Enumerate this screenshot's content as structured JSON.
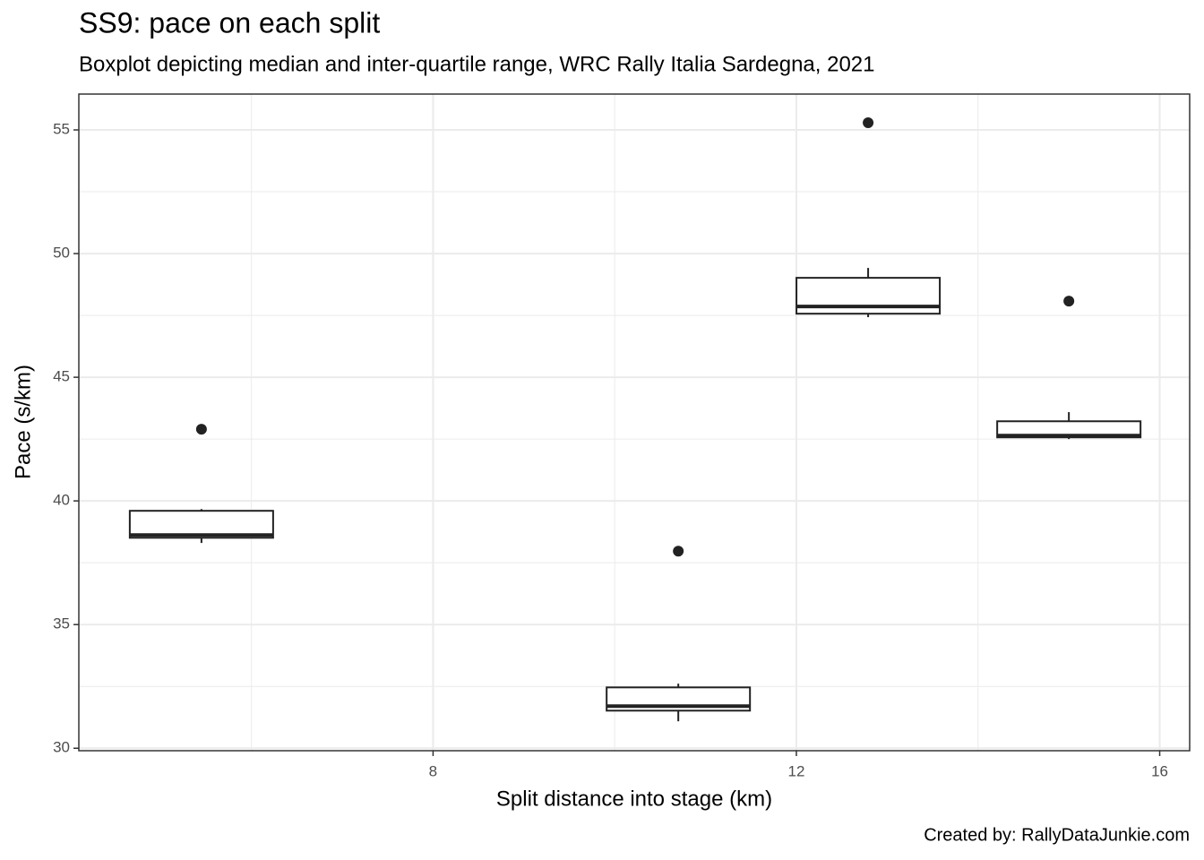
{
  "chart_data": {
    "type": "boxplot",
    "title": "SS9: pace on each split",
    "subtitle": "Boxplot depicting median and inter-quartile range, WRC Rally Italia Sardegna, 2021",
    "x_label": "Split distance into stage (km)",
    "y_label": "Pace (s/km)",
    "caption": "Created by: RallyDataJunkie.com",
    "color": "#222222",
    "grid": true,
    "xlim": [
      4.1,
      16.33
    ],
    "xticks": [
      8,
      12,
      16
    ],
    "x_minor_ticks": [
      6,
      10,
      14
    ],
    "ylim": [
      29.9,
      56.45
    ],
    "yticks": [
      30,
      35,
      40,
      45,
      50,
      55
    ],
    "y_minor_ticks": [
      32.5,
      37.5,
      42.5,
      47.5,
      52.5
    ],
    "boxes": [
      {
        "x": 5.45,
        "whisker_low": 38.3,
        "q1": 38.51,
        "median": 38.62,
        "q3": 39.6,
        "whisker_high": 39.67,
        "outliers": [
          42.9
        ]
      },
      {
        "x": 10.7,
        "whisker_low": 31.09,
        "q1": 31.52,
        "median": 31.7,
        "q3": 32.46,
        "whisker_high": 32.61,
        "outliers": [
          37.97
        ]
      },
      {
        "x": 12.79,
        "whisker_low": 47.43,
        "q1": 47.57,
        "median": 47.86,
        "q3": 49.02,
        "whisker_high": 49.42,
        "outliers": [
          55.29
        ]
      },
      {
        "x": 15.0,
        "whisker_low": 42.5,
        "q1": 42.57,
        "median": 42.64,
        "q3": 43.22,
        "whisker_high": 43.59,
        "outliers": [
          48.08
        ]
      }
    ]
  }
}
